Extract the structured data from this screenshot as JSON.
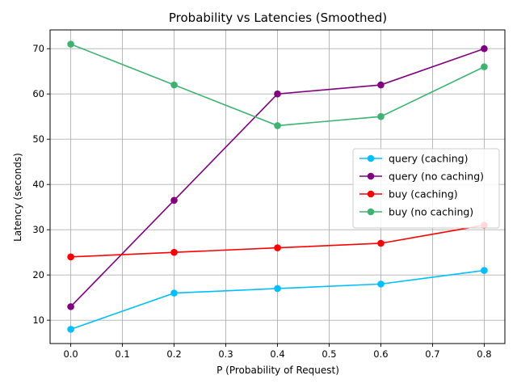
{
  "chart_data": {
    "type": "line",
    "title": "Probability vs Latencies (Smoothed)",
    "xlabel": "P (Probability of Request)",
    "ylabel": "Latency (seconds)",
    "xlim": [
      -0.04,
      0.84
    ],
    "ylim": [
      4.85,
      74.15
    ],
    "xticks": [
      0.0,
      0.1,
      0.2,
      0.3,
      0.4,
      0.5,
      0.6,
      0.7,
      0.8
    ],
    "xtick_labels": [
      "0.0",
      "0.1",
      "0.2",
      "0.3",
      "0.4",
      "0.5",
      "0.6",
      "0.7",
      "0.8"
    ],
    "yticks": [
      10,
      20,
      30,
      40,
      50,
      60,
      70
    ],
    "ytick_labels": [
      "10",
      "20",
      "30",
      "40",
      "50",
      "60",
      "70"
    ],
    "grid": true,
    "legend_position": "center-right",
    "x": [
      0.0,
      0.2,
      0.4,
      0.6,
      0.8
    ],
    "series": [
      {
        "name": "query (caching)",
        "color": "#00bfff",
        "values": [
          8,
          16,
          17,
          18,
          21
        ]
      },
      {
        "name": "query (no caching)",
        "color": "#800080",
        "values": [
          13,
          36.5,
          60,
          62,
          70
        ]
      },
      {
        "name": "buy (caching)",
        "color": "#ff0000",
        "values": [
          24,
          25,
          26,
          27,
          31
        ]
      },
      {
        "name": "buy (no caching)",
        "color": "#3cb371",
        "values": [
          71,
          62,
          53,
          55,
          66
        ]
      }
    ]
  }
}
